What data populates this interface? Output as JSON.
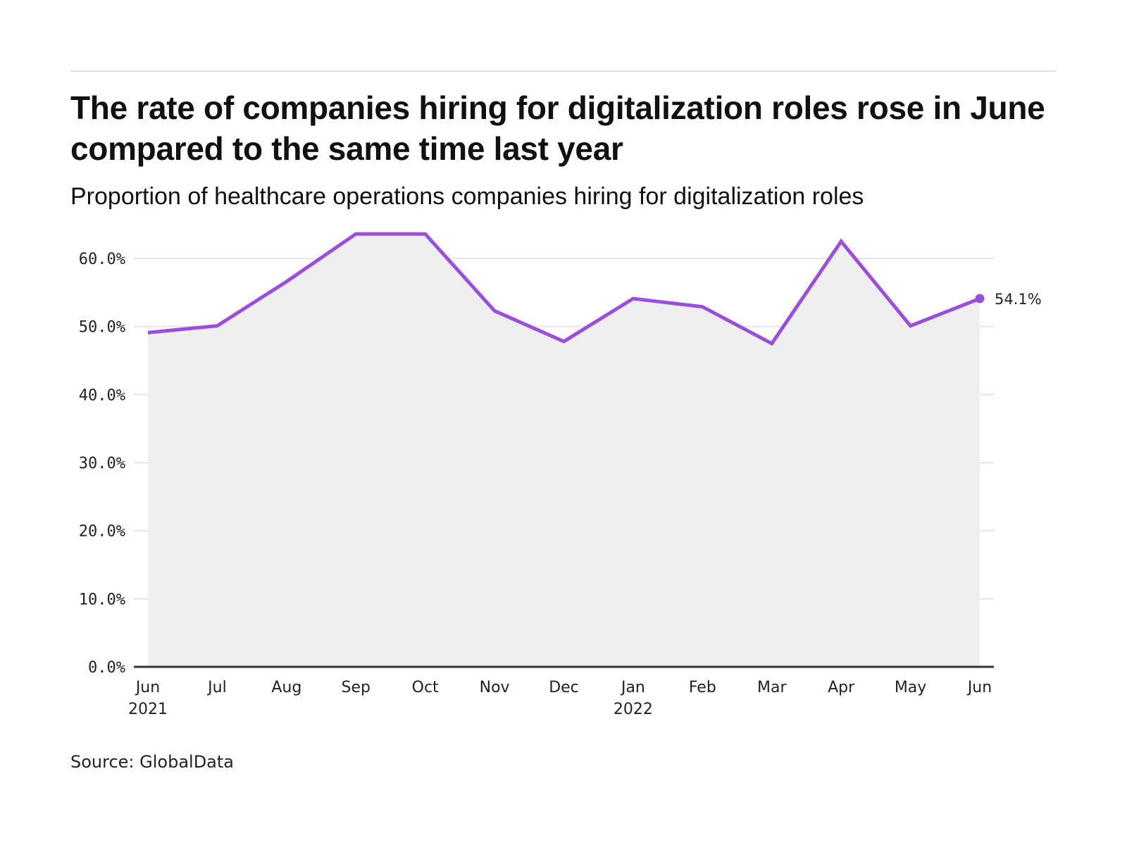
{
  "header": {
    "title": "The rate of companies hiring for digitalization roles rose in June compared to the same time last year",
    "subtitle": "Proportion of healthcare operations companies hiring for digitalization roles"
  },
  "footer": {
    "source": "Source: GlobalData"
  },
  "colors": {
    "line": "#9b4ddb",
    "area": "#efefef",
    "grid": "#e3e3e3",
    "axis": "#333333"
  },
  "chart_data": {
    "type": "area",
    "title": "The rate of companies hiring for digitalization roles rose in June compared to the same time last year",
    "subtitle": "Proportion of healthcare operations companies hiring for digitalization roles",
    "xlabel": "",
    "ylabel": "",
    "categories": [
      "Jun 2021",
      "Jul 2021",
      "Aug 2021",
      "Sep 2021",
      "Oct 2021",
      "Nov 2021",
      "Dec 2021",
      "Jan 2022",
      "Feb 2022",
      "Mar 2022",
      "Apr 2022",
      "May 2022",
      "Jun 2022"
    ],
    "x_tick_labels": [
      {
        "month": "Jun",
        "year": "2021"
      },
      {
        "month": "Jul",
        "year": ""
      },
      {
        "month": "Aug",
        "year": ""
      },
      {
        "month": "Sep",
        "year": ""
      },
      {
        "month": "Oct",
        "year": ""
      },
      {
        "month": "Nov",
        "year": ""
      },
      {
        "month": "Dec",
        "year": ""
      },
      {
        "month": "Jan",
        "year": "2022"
      },
      {
        "month": "Feb",
        "year": ""
      },
      {
        "month": "Mar",
        "year": ""
      },
      {
        "month": "Apr",
        "year": ""
      },
      {
        "month": "May",
        "year": ""
      },
      {
        "month": "Jun",
        "year": ""
      }
    ],
    "series": [
      {
        "name": "Proportion of companies hiring for digitalization roles",
        "unit": "%",
        "values": [
          49.1,
          50.1,
          56.6,
          63.6,
          63.6,
          52.3,
          47.8,
          54.1,
          52.9,
          47.5,
          62.5,
          50.1,
          54.1
        ]
      }
    ],
    "end_label": "54.1%",
    "ylim": [
      0,
      60
    ],
    "y_ticks": [
      0,
      10,
      20,
      30,
      40,
      50,
      60
    ],
    "y_tick_labels": [
      "0.0%",
      "10.0%",
      "20.0%",
      "30.0%",
      "40.0%",
      "50.0%",
      "60.0%"
    ],
    "grid": true,
    "legend": "none"
  }
}
